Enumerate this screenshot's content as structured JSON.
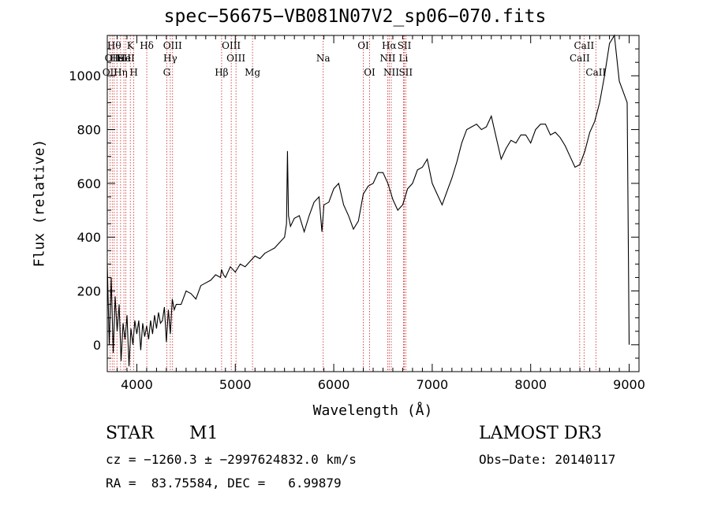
{
  "chart_data": {
    "type": "line",
    "title": "spec−56675−VB081N07V2_sp06−070.fits",
    "xlabel": "Wavelength (Å)",
    "ylabel": "Flux (relative)",
    "xlim": [
      3700,
      9100
    ],
    "ylim": [
      -100,
      1150
    ],
    "xticks": [
      4000,
      5000,
      6000,
      7000,
      8000,
      9000
    ],
    "yticks": [
      0,
      200,
      400,
      600,
      800,
      1000
    ],
    "series": [
      {
        "name": "spectrum",
        "x": [
          3700,
          3720,
          3740,
          3760,
          3780,
          3800,
          3820,
          3840,
          3860,
          3880,
          3900,
          3920,
          3940,
          3960,
          3980,
          4000,
          4020,
          4040,
          4060,
          4080,
          4100,
          4120,
          4140,
          4160,
          4180,
          4200,
          4220,
          4240,
          4260,
          4280,
          4300,
          4320,
          4340,
          4360,
          4380,
          4400,
          4450,
          4500,
          4550,
          4600,
          4650,
          4700,
          4750,
          4800,
          4850,
          4860,
          4880,
          4900,
          4950,
          5000,
          5050,
          5100,
          5150,
          5200,
          5250,
          5300,
          5350,
          5400,
          5450,
          5500,
          5520,
          5530,
          5540,
          5560,
          5600,
          5650,
          5700,
          5750,
          5800,
          5850,
          5880,
          5900,
          5950,
          6000,
          6050,
          6100,
          6150,
          6200,
          6250,
          6300,
          6350,
          6400,
          6450,
          6500,
          6550,
          6600,
          6650,
          6700,
          6750,
          6800,
          6850,
          6900,
          6950,
          7000,
          7050,
          7100,
          7150,
          7200,
          7250,
          7300,
          7350,
          7400,
          7450,
          7500,
          7550,
          7600,
          7650,
          7700,
          7750,
          7800,
          7850,
          7900,
          7950,
          8000,
          8050,
          8100,
          8150,
          8200,
          8250,
          8300,
          8350,
          8400,
          8450,
          8500,
          8550,
          8600,
          8650,
          8700,
          8750,
          8800,
          8850,
          8900,
          8950,
          8980,
          9000
        ],
        "y": [
          300,
          0,
          250,
          -30,
          180,
          50,
          150,
          -60,
          80,
          20,
          110,
          -80,
          60,
          0,
          90,
          40,
          90,
          -20,
          80,
          30,
          70,
          20,
          90,
          40,
          110,
          60,
          120,
          80,
          90,
          140,
          10,
          130,
          40,
          170,
          130,
          150,
          150,
          200,
          190,
          170,
          220,
          230,
          240,
          260,
          250,
          280,
          260,
          250,
          290,
          270,
          300,
          290,
          310,
          330,
          320,
          340,
          350,
          360,
          380,
          400,
          450,
          720,
          480,
          440,
          470,
          480,
          420,
          480,
          530,
          550,
          420,
          520,
          530,
          580,
          600,
          520,
          480,
          430,
          460,
          560,
          590,
          600,
          640,
          640,
          600,
          540,
          500,
          520,
          580,
          600,
          650,
          660,
          690,
          600,
          560,
          520,
          570,
          620,
          680,
          750,
          800,
          810,
          820,
          800,
          810,
          850,
          770,
          690,
          730,
          760,
          750,
          780,
          780,
          750,
          800,
          820,
          820,
          780,
          790,
          770,
          740,
          700,
          660,
          670,
          720,
          790,
          830,
          900,
          1000,
          1120,
          1150,
          980,
          930,
          900,
          0
        ]
      }
    ],
    "lines": [
      {
        "wl": 3727,
        "label": "OII",
        "row": 3
      },
      {
        "wl": 3750,
        "label": "OII",
        "row": 2
      },
      {
        "wl": 3770,
        "label": "Hθ",
        "row": 1
      },
      {
        "wl": 3798,
        "label": "He",
        "row": 2
      },
      {
        "wl": 3835,
        "label": "Hη",
        "row": 3
      },
      {
        "wl": 3869,
        "label": "SII",
        "row": 2
      },
      {
        "wl": 3889,
        "label": "HeI",
        "row": 2
      },
      {
        "wl": 3934,
        "label": "K",
        "row": 1
      },
      {
        "wl": 3969,
        "label": "H",
        "row": 3
      },
      {
        "wl": 4101,
        "label": "Hδ",
        "row": 1
      },
      {
        "wl": 4304,
        "label": "G",
        "row": 3
      },
      {
        "wl": 4340,
        "label": "Hγ",
        "row": 2
      },
      {
        "wl": 4363,
        "label": "OIII",
        "row": 1
      },
      {
        "wl": 4861,
        "label": "Hβ",
        "row": 3
      },
      {
        "wl": 4959,
        "label": "OIII",
        "row": 1
      },
      {
        "wl": 5007,
        "label": "OIII",
        "row": 2
      },
      {
        "wl": 5175,
        "label": "Mg",
        "row": 3
      },
      {
        "wl": 5893,
        "label": "Na",
        "row": 2
      },
      {
        "wl": 6300,
        "label": "OI",
        "row": 1
      },
      {
        "wl": 6364,
        "label": "OI",
        "row": 3
      },
      {
        "wl": 6548,
        "label": "NII",
        "row": 2
      },
      {
        "wl": 6563,
        "label": "Hα",
        "row": 1
      },
      {
        "wl": 6584,
        "label": "NII",
        "row": 3
      },
      {
        "wl": 6708,
        "label": "Li",
        "row": 2
      },
      {
        "wl": 6717,
        "label": "SII",
        "row": 1
      },
      {
        "wl": 6731,
        "label": "SII",
        "row": 3
      },
      {
        "wl": 8498,
        "label": "CaII",
        "row": 2
      },
      {
        "wl": 8542,
        "label": "CaII",
        "row": 1
      },
      {
        "wl": 8662,
        "label": "CaII",
        "row": 3
      }
    ]
  },
  "footer": {
    "class_label": "STAR",
    "subclass": "M1",
    "survey": "LAMOST DR3",
    "cz": "cz = −1260.3 ± −2997624832.0 km/s",
    "obs_date": "Obs−Date: 20140117",
    "coords": "RA =  83.75584, DEC =   6.99879"
  },
  "colors": {
    "axis": "#000000",
    "spectrum": "#000000",
    "line_marker": "#cc2222"
  }
}
